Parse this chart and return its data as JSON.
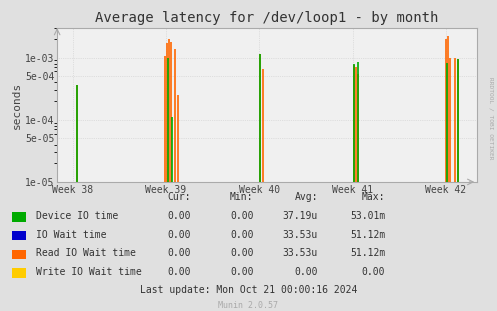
{
  "title": "Average latency for /dev/loop1 - by month",
  "ylabel": "seconds",
  "background_color": "#e0e0e0",
  "plot_background_color": "#f0f0f0",
  "grid_color": "#cccccc",
  "ylim_min": 1e-05,
  "ylim_max": 0.003,
  "xlim": [
    -28,
    728
  ],
  "x_ticks": [
    0,
    168,
    336,
    504,
    672
  ],
  "x_tick_labels": [
    "Week 38",
    "Week 39",
    "Week 40",
    "Week 41",
    "Week 42"
  ],
  "yticks": [
    1e-05,
    5e-05,
    0.0001,
    0.0005,
    0.001
  ],
  "ytick_labels": [
    "1e-05",
    "5e-05",
    "1e-04",
    "5e-04",
    "1e-03"
  ],
  "series": {
    "device_io": {
      "color": "#00aa00",
      "label": "Device IO time",
      "spikes": [
        [
          8,
          0.00036
        ],
        [
          172,
          0.00098
        ],
        [
          178,
          0.00011
        ],
        [
          338,
          0.00115
        ],
        [
          506,
          0.00078
        ],
        [
          514,
          0.00085
        ],
        [
          674,
          0.00082
        ],
        [
          694,
          0.00095
        ]
      ]
    },
    "io_wait": {
      "color": "#0000cc",
      "label": "IO Wait time",
      "spikes": []
    },
    "read_io_wait": {
      "color": "#ff6600",
      "label": "Read IO Wait time",
      "spikes": [
        [
          8,
          0.00036
        ],
        [
          166,
          0.00105
        ],
        [
          170,
          0.00175
        ],
        [
          173,
          0.002
        ],
        [
          177,
          0.0018
        ],
        [
          184,
          0.0014
        ],
        [
          190,
          0.00025
        ],
        [
          338,
          0.00115
        ],
        [
          342,
          0.00065
        ],
        [
          506,
          0.00075
        ],
        [
          510,
          0.0007
        ],
        [
          514,
          0.00055
        ],
        [
          672,
          0.002
        ],
        [
          676,
          0.0022
        ],
        [
          680,
          0.001
        ],
        [
          688,
          0.001
        ],
        [
          694,
          0.00095
        ]
      ]
    },
    "write_io_wait": {
      "color": "#ffcc00",
      "label": "Write IO Wait time",
      "spikes": []
    }
  },
  "legend_labels": [
    "Device IO time",
    "IO Wait time",
    "Read IO Wait time",
    "Write IO Wait time"
  ],
  "legend_colors": [
    "#00aa00",
    "#0000cc",
    "#ff6600",
    "#ffcc00"
  ],
  "table_headers": [
    "Cur:",
    "Min:",
    "Avg:",
    "Max:"
  ],
  "table_data": [
    [
      "0.00",
      "0.00",
      "37.19u",
      "53.01m"
    ],
    [
      "0.00",
      "0.00",
      "33.53u",
      "51.12m"
    ],
    [
      "0.00",
      "0.00",
      "33.53u",
      "51.12m"
    ],
    [
      "0.00",
      "0.00",
      "0.00",
      "0.00"
    ]
  ],
  "last_update": "Last update: Mon Oct 21 00:00:16 2024",
  "munin_version": "Munin 2.0.57",
  "rrdtool_label": "RRDTOOL / TOBI OETIKER"
}
